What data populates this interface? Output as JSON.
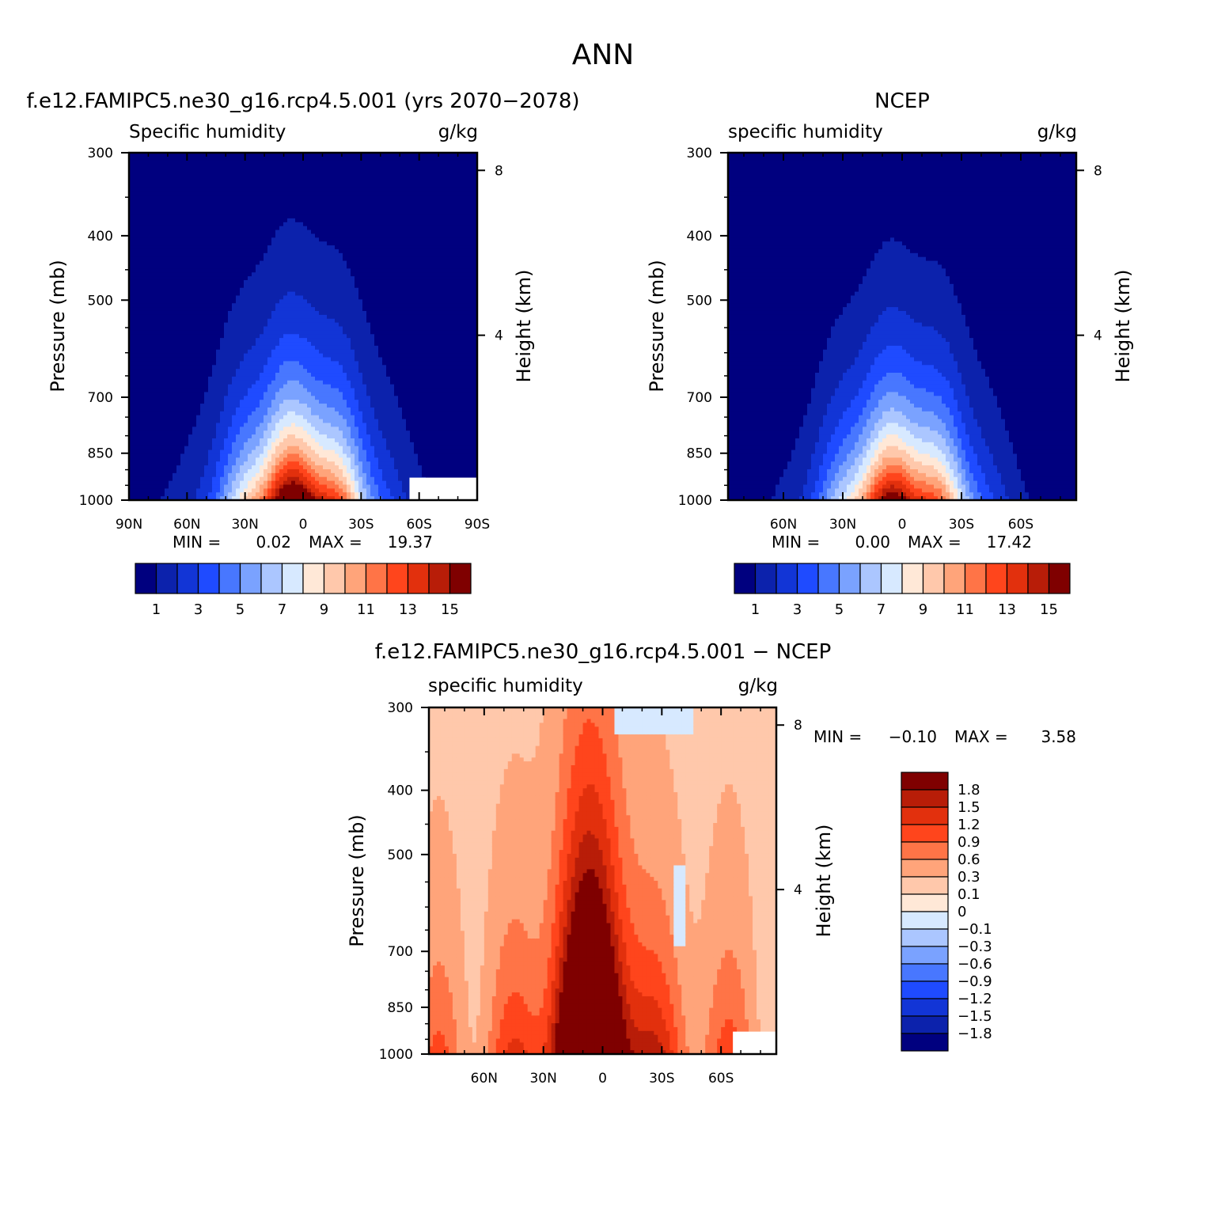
{
  "page_title": "ANN",
  "chart_data": [
    {
      "type": "heatmap",
      "title": "f.e12.FAMIPC5.ne30_g16.rcp4.5.001 (yrs 2070-2078)",
      "subtitle_left": "Specific humidity",
      "subtitle_right": "g/kg",
      "ylabel": "Pressure (mb)",
      "ylabel_right": "Height (km)",
      "x_ticks": [
        "90N",
        "60N",
        "30N",
        "0",
        "30S",
        "60S",
        "90S"
      ],
      "y_ticks": [
        "300",
        "400",
        "500",
        "700",
        "850",
        "1000"
      ],
      "y_right_ticks": [
        "8",
        "4"
      ],
      "ylim": [
        1000,
        300
      ],
      "min_label": "MIN =",
      "min_value": "0.02",
      "max_label": "MAX =",
      "max_value": "19.37",
      "colorbar_labels": [
        "1",
        "3",
        "5",
        "7",
        "9",
        "11",
        "13",
        "15"
      ],
      "levels": [
        1,
        2,
        3,
        4,
        5,
        6,
        7,
        8,
        9,
        10,
        11,
        12,
        13,
        14,
        15
      ],
      "surface_peak": 17.0,
      "top_value": 0.2,
      "peak_lat": 2
    },
    {
      "type": "heatmap",
      "title": "NCEP",
      "subtitle_left": "specific humidity",
      "subtitle_right": "g/kg",
      "ylabel": "Pressure (mb)",
      "ylabel_right": "Height (km)",
      "x_ticks": [
        "60N",
        "30N",
        "0",
        "30S",
        "60S"
      ],
      "y_ticks": [
        "300",
        "400",
        "500",
        "700",
        "850",
        "1000"
      ],
      "y_right_ticks": [
        "8",
        "4"
      ],
      "ylim": [
        1000,
        300
      ],
      "min_label": "MIN =",
      "min_value": "0.00",
      "max_label": "MAX =",
      "max_value": "17.42",
      "colorbar_labels": [
        "1",
        "3",
        "5",
        "7",
        "9",
        "11",
        "13",
        "15"
      ],
      "levels": [
        1,
        2,
        3,
        4,
        5,
        6,
        7,
        8,
        9,
        10,
        11,
        12,
        13,
        14,
        15
      ],
      "surface_peak": 15.5,
      "top_value": 0.1,
      "peak_lat": 0
    },
    {
      "type": "heatmap",
      "title": "f.e12.FAMIPC5.ne30_g16.rcp4.5.001 - NCEP",
      "subtitle_left": "specific humidity",
      "subtitle_right": "g/kg",
      "ylabel": "Pressure (mb)",
      "ylabel_right": "Height (km)",
      "x_ticks": [
        "60N",
        "30N",
        "0",
        "30S",
        "60S"
      ],
      "y_ticks": [
        "300",
        "400",
        "500",
        "700",
        "850",
        "1000"
      ],
      "y_right_ticks": [
        "8",
        "4"
      ],
      "ylim": [
        1000,
        300
      ],
      "min_label": "MIN =",
      "min_value": "-0.10",
      "max_label": "MAX =",
      "max_value": "3.58",
      "colorbar_labels": [
        "1.8",
        "1.5",
        "1.2",
        "0.9",
        "0.6",
        "0.3",
        "0.1",
        "0",
        "-0.1",
        "-0.3",
        "-0.6",
        "-0.9",
        "-1.2",
        "-1.5",
        "-1.8"
      ],
      "levels": [
        -1.8,
        -1.5,
        -1.2,
        -0.9,
        -0.6,
        -0.3,
        -0.1,
        0,
        0.1,
        0.3,
        0.6,
        0.9,
        1.2,
        1.5,
        1.8
      ]
    }
  ],
  "palette": [
    "#00007f",
    "#0c22ac",
    "#1235d6",
    "#1f4bff",
    "#4877ff",
    "#7aa2ff",
    "#abc6ff",
    "#d7e9ff",
    "#ffe8d7",
    "#ffc8ab",
    "#ffa47a",
    "#ff7447",
    "#ff451c",
    "#e2300d",
    "#b81d08",
    "#7f0000"
  ]
}
